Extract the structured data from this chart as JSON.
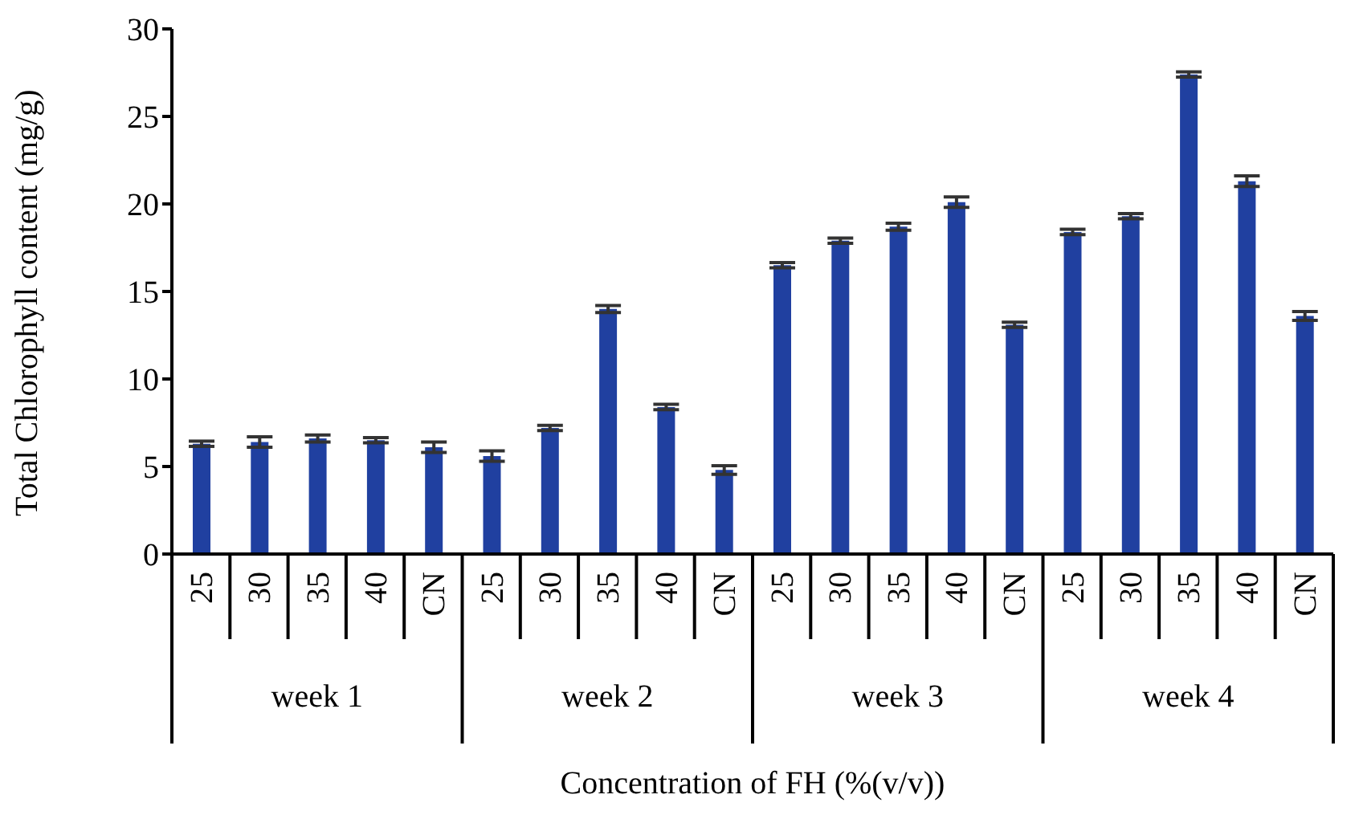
{
  "chart_data": {
    "type": "bar",
    "xlabel": "Concentration of FH (%(v/v))",
    "ylabel": "Total Chlorophyll content (mg/g)",
    "categories": [
      "25",
      "30",
      "35",
      "40",
      "CN",
      "25",
      "30",
      "35",
      "40",
      "CN",
      "25",
      "30",
      "35",
      "40",
      "CN",
      "25",
      "30",
      "35",
      "40",
      "CN"
    ],
    "values": [
      6.3,
      6.4,
      6.6,
      6.5,
      6.1,
      5.6,
      7.2,
      14.0,
      8.4,
      4.8,
      16.5,
      17.9,
      18.7,
      20.1,
      13.1,
      18.4,
      19.3,
      27.4,
      21.3,
      13.6
    ],
    "errors": [
      0.15,
      0.3,
      0.2,
      0.15,
      0.3,
      0.3,
      0.15,
      0.2,
      0.15,
      0.25,
      0.15,
      0.15,
      0.2,
      0.3,
      0.15,
      0.15,
      0.15,
      0.15,
      0.3,
      0.25
    ],
    "color": "#2040a0",
    "ylim": [
      0,
      30
    ],
    "yticks": [
      0,
      5,
      10,
      15,
      20,
      25,
      30
    ],
    "annotations": [
      "week 1",
      "week 2",
      "week 3",
      "week 4"
    ]
  }
}
